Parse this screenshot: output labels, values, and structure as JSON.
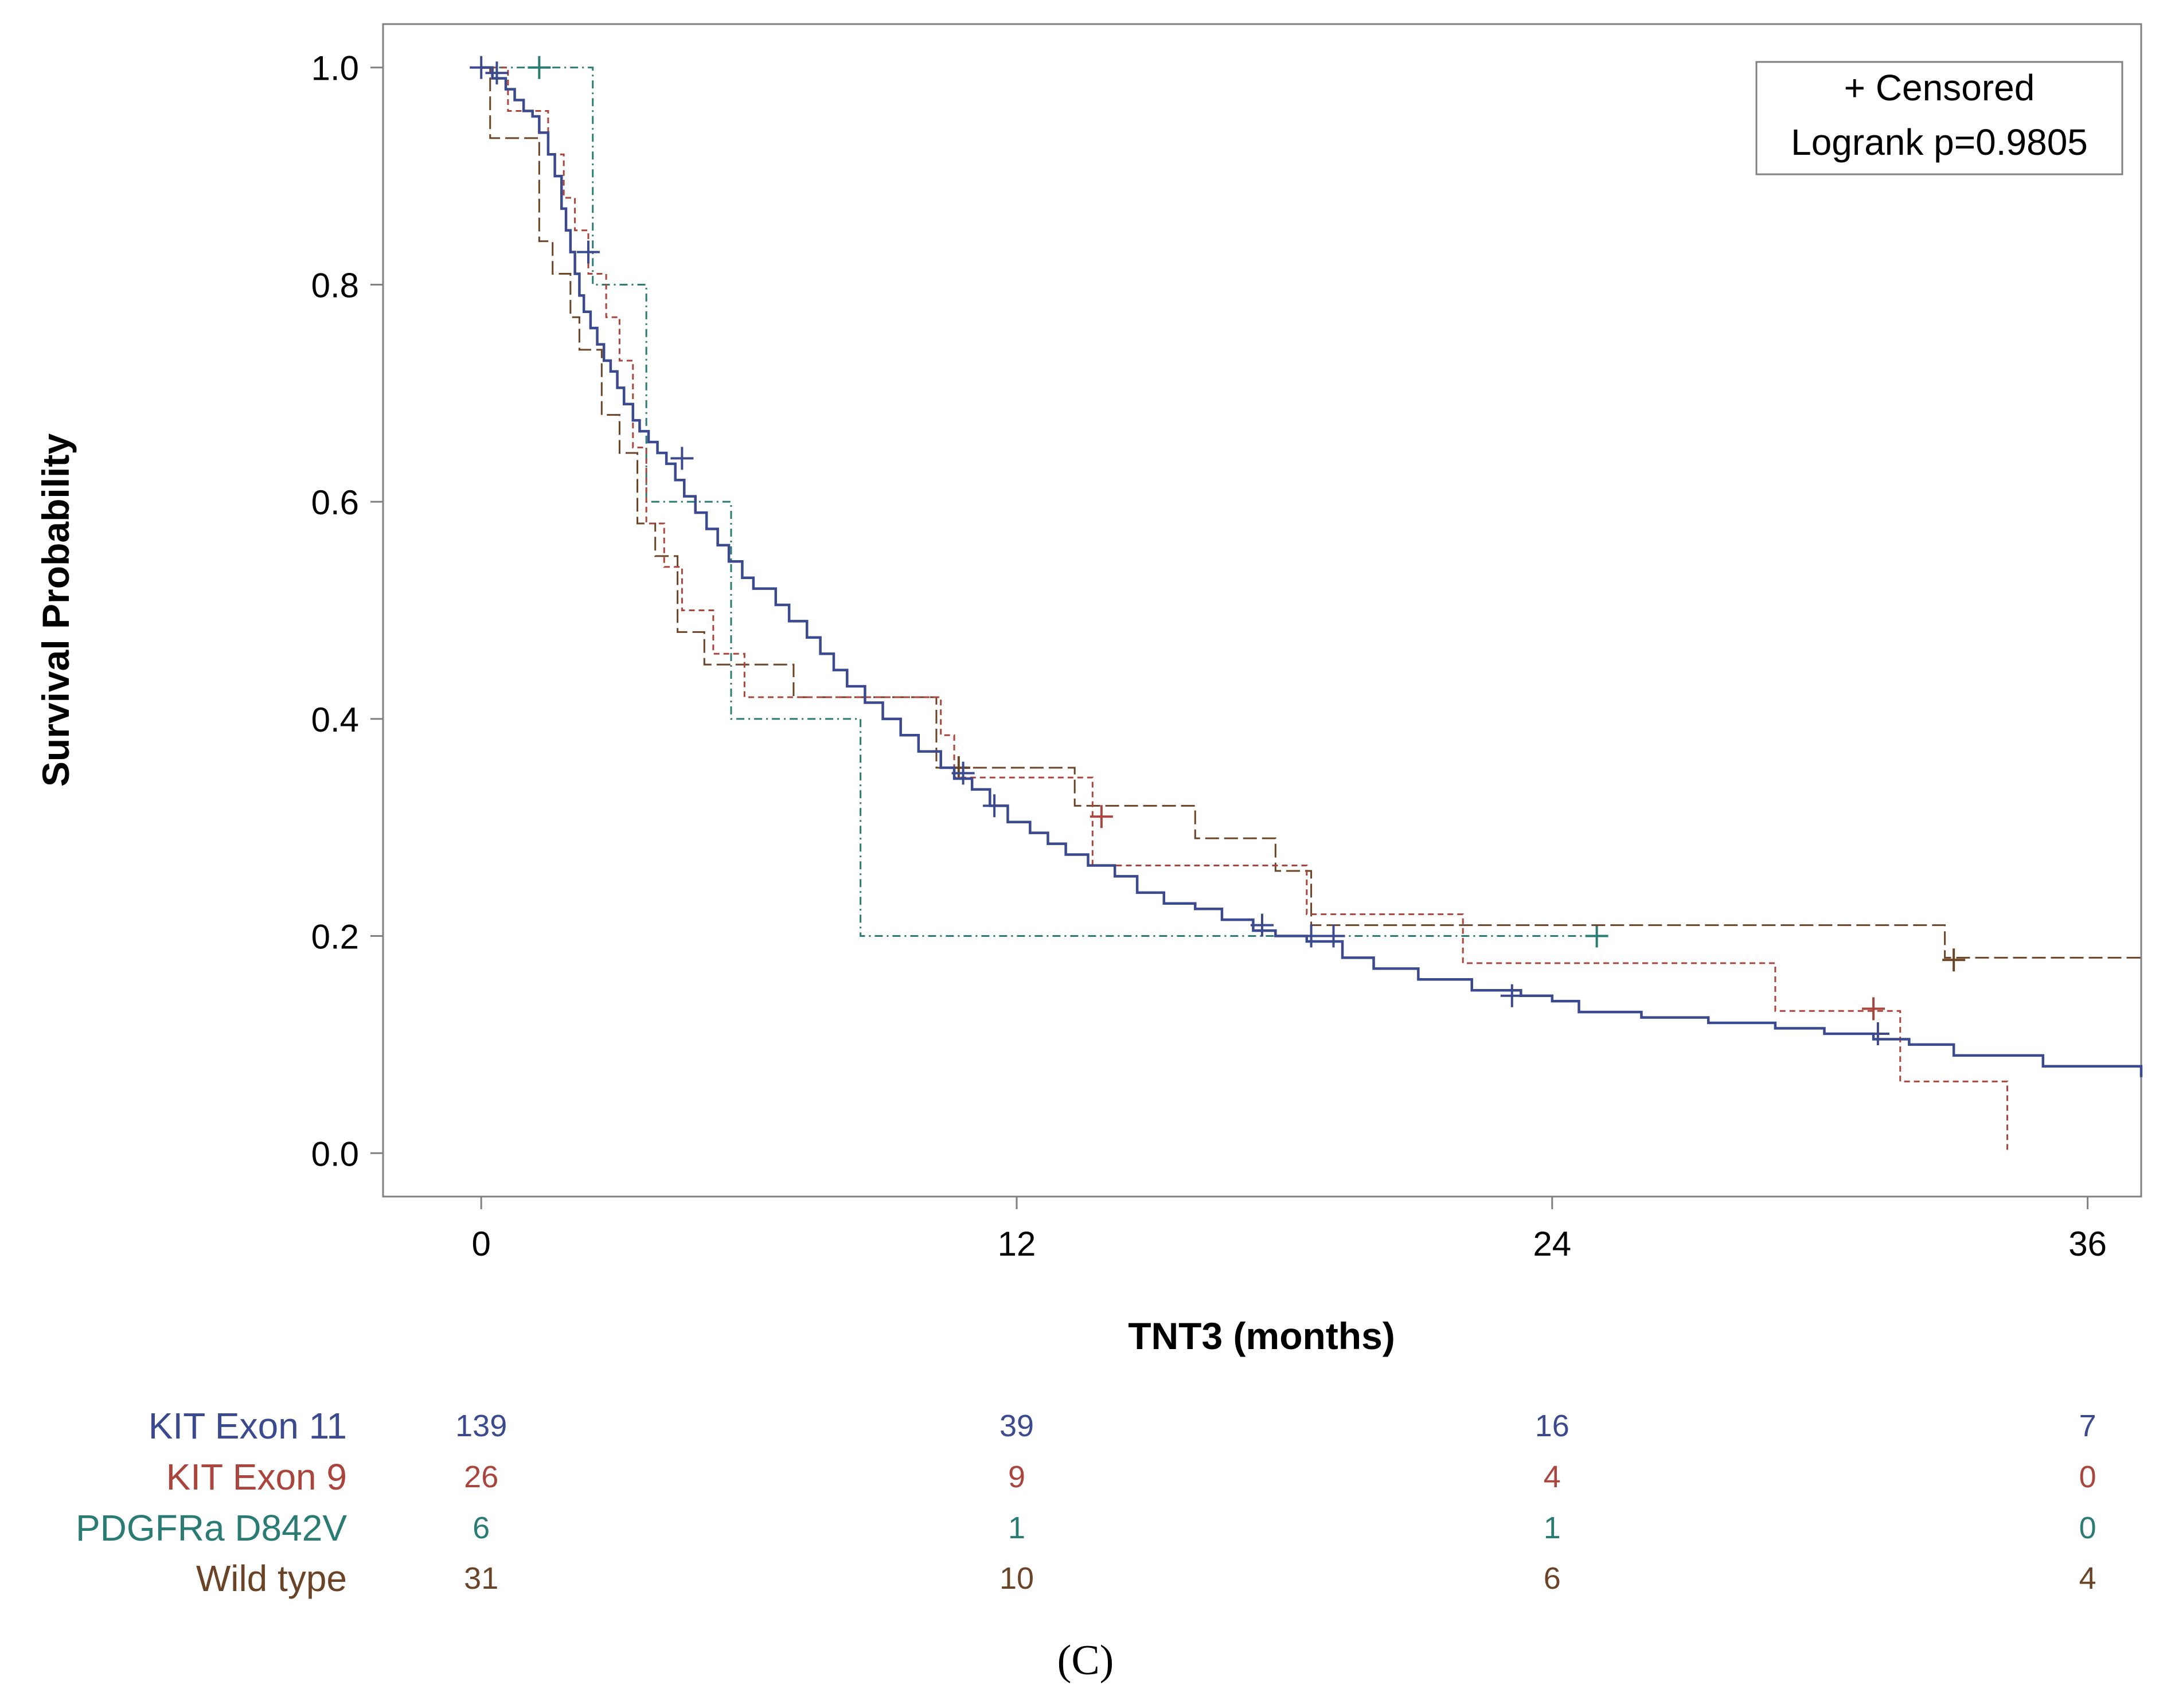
{
  "figure_label": "(C)",
  "chart_data": {
    "type": "line",
    "subtype": "kaplan-meier",
    "xlabel": "TNT3 (months)",
    "ylabel": "Survival Probability",
    "xlim": [
      -2.2,
      37.2
    ],
    "ylim": [
      -0.04,
      1.04
    ],
    "xticks": [
      0,
      12,
      24,
      36
    ],
    "xtick_labels": [
      "0",
      "12",
      "24",
      "36"
    ],
    "yticks": [
      0.0,
      0.2,
      0.4,
      0.6,
      0.8,
      1.0
    ],
    "ytick_labels": [
      "0.0",
      "0.2",
      "0.4",
      "0.6",
      "0.8",
      "1.0"
    ],
    "legend": {
      "placement": "top-right",
      "censored_label": "+ Censored",
      "logrank_label": "Logrank p=0.9805"
    },
    "series": [
      {
        "name": "KIT Exon 11",
        "color": "#3b4a8f",
        "style": "solid",
        "x": [
          0,
          0.25,
          0.55,
          0.75,
          0.95,
          1.15,
          1.3,
          1.5,
          1.65,
          1.8,
          1.9,
          2.0,
          2.1,
          2.2,
          2.3,
          2.45,
          2.6,
          2.75,
          2.9,
          3.05,
          3.2,
          3.4,
          3.55,
          3.75,
          3.95,
          4.15,
          4.35,
          4.55,
          4.8,
          5.05,
          5.3,
          5.55,
          5.85,
          6.1,
          6.6,
          6.9,
          7.3,
          7.6,
          7.9,
          8.2,
          8.6,
          9.0,
          9.4,
          9.8,
          10.3,
          10.6,
          11.0,
          11.4,
          11.8,
          12.3,
          12.7,
          13.1,
          13.6,
          14.2,
          14.7,
          15.3,
          16.0,
          16.6,
          17.3,
          17.8,
          18.5,
          19.3,
          20.0,
          21.0,
          22.2,
          23.3,
          24.0,
          24.6,
          26.0,
          27.5,
          29.0,
          30.1,
          31.2,
          32.0,
          33.0,
          35.0,
          37.2
        ],
        "y": [
          1.0,
          0.99,
          0.98,
          0.97,
          0.96,
          0.955,
          0.94,
          0.92,
          0.9,
          0.87,
          0.85,
          0.83,
          0.81,
          0.79,
          0.775,
          0.76,
          0.745,
          0.73,
          0.72,
          0.705,
          0.69,
          0.675,
          0.665,
          0.655,
          0.645,
          0.635,
          0.62,
          0.605,
          0.59,
          0.575,
          0.56,
          0.545,
          0.53,
          0.52,
          0.505,
          0.49,
          0.475,
          0.46,
          0.445,
          0.43,
          0.415,
          0.4,
          0.385,
          0.37,
          0.355,
          0.345,
          0.335,
          0.32,
          0.305,
          0.295,
          0.285,
          0.275,
          0.265,
          0.255,
          0.24,
          0.23,
          0.225,
          0.215,
          0.205,
          0.2,
          0.195,
          0.18,
          0.17,
          0.16,
          0.15,
          0.145,
          0.14,
          0.13,
          0.125,
          0.12,
          0.115,
          0.11,
          0.105,
          0.1,
          0.09,
          0.08,
          0.07
        ],
        "censored": [
          [
            0,
            1.0
          ],
          [
            0.35,
            0.995
          ],
          [
            2.4,
            0.83
          ],
          [
            4.5,
            0.64
          ],
          [
            10.8,
            0.35
          ],
          [
            11.5,
            0.32
          ],
          [
            17.5,
            0.21
          ],
          [
            18.6,
            0.2
          ],
          [
            19.1,
            0.2
          ],
          [
            23.1,
            0.145
          ],
          [
            31.3,
            0.11
          ]
        ]
      },
      {
        "name": "KIT Exon 9",
        "color": "#a9453c",
        "style": "shortdash",
        "x": [
          0,
          0.6,
          0.9,
          1.5,
          1.85,
          2.1,
          2.4,
          2.8,
          3.1,
          3.4,
          3.7,
          4.1,
          4.5,
          5.2,
          5.9,
          6.4,
          9.4,
          10.3,
          10.6,
          12.2,
          13.7,
          16.8,
          18.5,
          22.0,
          29.0,
          31.8,
          34.2
        ],
        "y": [
          1.0,
          0.96,
          0.96,
          0.92,
          0.88,
          0.85,
          0.81,
          0.77,
          0.73,
          0.65,
          0.58,
          0.54,
          0.5,
          0.46,
          0.42,
          0.42,
          0.42,
          0.385,
          0.346,
          0.346,
          0.265,
          0.265,
          0.22,
          0.175,
          0.131,
          0.066,
          0.0
        ],
        "censored": [
          [
            13.9,
            0.31
          ],
          [
            31.2,
            0.133
          ]
        ]
      },
      {
        "name": "PDGFRa D842V",
        "color": "#2a7b73",
        "style": "dashdot",
        "x": [
          0,
          2.5,
          3.7,
          5.6,
          8.5,
          25.0
        ],
        "y": [
          1.0,
          0.8,
          0.6,
          0.4,
          0.2,
          0.2
        ],
        "censored": [
          [
            1.3,
            1.0
          ],
          [
            25.0,
            0.2
          ]
        ]
      },
      {
        "name": "Wild type",
        "color": "#6b4326",
        "style": "longdash",
        "x": [
          0,
          0.2,
          0.9,
          1.3,
          1.6,
          2.0,
          2.2,
          2.7,
          3.1,
          3.5,
          3.9,
          4.4,
          5.0,
          7.0,
          9.8,
          10.2,
          13.3,
          16.0,
          17.8,
          18.6,
          32.8,
          37.2
        ],
        "y": [
          1.0,
          0.935,
          0.935,
          0.84,
          0.81,
          0.77,
          0.74,
          0.68,
          0.645,
          0.58,
          0.55,
          0.48,
          0.45,
          0.42,
          0.42,
          0.355,
          0.32,
          0.29,
          0.26,
          0.21,
          0.18,
          0.18
        ],
        "censored": [
          [
            10.7,
            0.355
          ],
          [
            33.0,
            0.178
          ]
        ]
      }
    ],
    "risk_table": {
      "times": [
        0,
        12,
        24,
        36
      ],
      "rows": [
        {
          "name": "KIT Exon 11",
          "color": "#3b4a8f",
          "counts": [
            "139",
            "39",
            "16",
            "7"
          ]
        },
        {
          "name": "KIT Exon 9",
          "color": "#a9453c",
          "counts": [
            "26",
            "9",
            "4",
            "0"
          ]
        },
        {
          "name": "PDGFRa D842V",
          "color": "#2a7b73",
          "counts": [
            "6",
            "1",
            "1",
            "0"
          ]
        },
        {
          "name": "Wild type",
          "color": "#6b4326",
          "counts": [
            "31",
            "10",
            "6",
            "4"
          ]
        }
      ]
    }
  }
}
